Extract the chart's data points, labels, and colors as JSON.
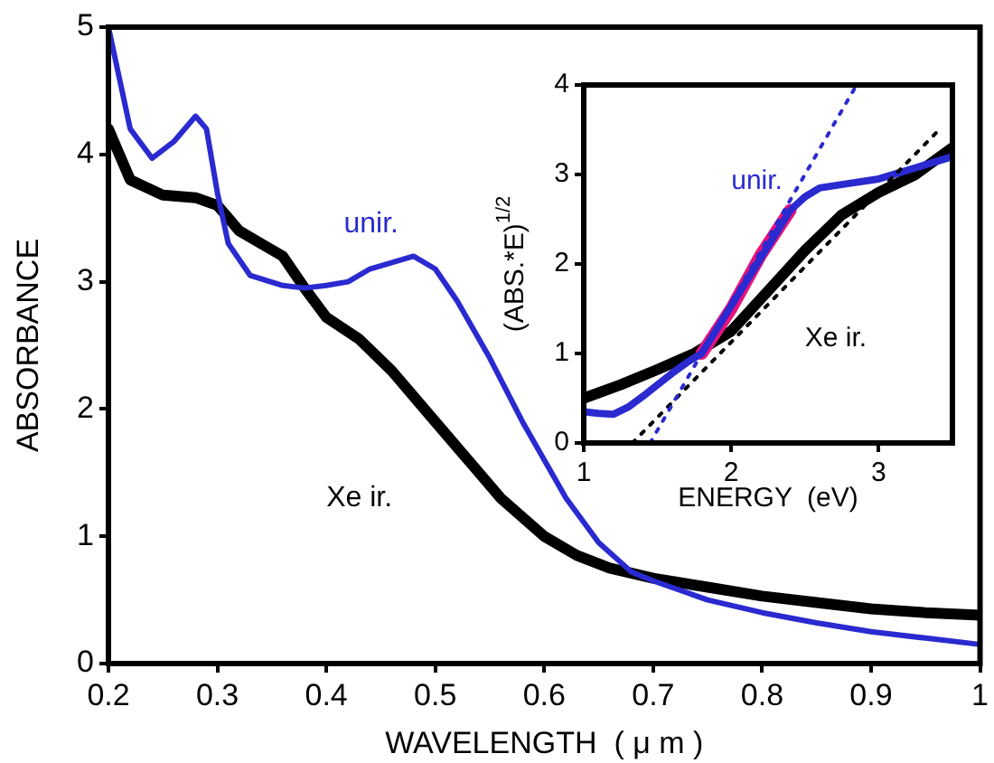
{
  "chart_data": [
    {
      "type": "line",
      "xlabel": "WAVELENGTH  ( μ m )",
      "ylabel": "ABSORBANCE",
      "xlim": [
        0.2,
        1
      ],
      "xticks": [
        0.2,
        0.3,
        0.4,
        0.5,
        0.6,
        0.7,
        0.8,
        0.9,
        1
      ],
      "ylim": [
        0,
        5
      ],
      "yticks": [
        0,
        1,
        2,
        3,
        4,
        5
      ],
      "grid": false,
      "legend": false,
      "marker": "none",
      "line_style": "solid",
      "series": [
        {
          "name": "unir.",
          "color": "#2a2ad0",
          "x": [
            0.2,
            0.21,
            0.22,
            0.24,
            0.26,
            0.28,
            0.29,
            0.3,
            0.31,
            0.33,
            0.36,
            0.38,
            0.4,
            0.42,
            0.44,
            0.48,
            0.5,
            0.52,
            0.55,
            0.58,
            0.6,
            0.62,
            0.65,
            0.68,
            0.7,
            0.75,
            0.8,
            0.85,
            0.9,
            0.95,
            1
          ],
          "values": [
            5.0,
            4.6,
            4.2,
            3.97,
            4.1,
            4.3,
            4.2,
            3.7,
            3.3,
            3.05,
            2.97,
            2.95,
            2.97,
            3.0,
            3.1,
            3.2,
            3.1,
            2.85,
            2.4,
            1.9,
            1.6,
            1.3,
            0.95,
            0.72,
            0.65,
            0.5,
            0.4,
            0.32,
            0.25,
            0.2,
            0.15
          ]
        },
        {
          "name": "Xe ir.",
          "color": "#000000",
          "x": [
            0.2,
            0.21,
            0.22,
            0.25,
            0.28,
            0.3,
            0.32,
            0.34,
            0.36,
            0.38,
            0.4,
            0.43,
            0.46,
            0.5,
            0.53,
            0.56,
            0.6,
            0.63,
            0.66,
            0.7,
            0.75,
            0.8,
            0.85,
            0.9,
            0.95,
            1
          ],
          "values": [
            4.2,
            4.0,
            3.8,
            3.68,
            3.66,
            3.6,
            3.4,
            3.3,
            3.2,
            2.95,
            2.72,
            2.55,
            2.3,
            1.9,
            1.6,
            1.3,
            1.0,
            0.85,
            0.75,
            0.67,
            0.6,
            0.53,
            0.48,
            0.43,
            0.4,
            0.38
          ]
        }
      ]
    },
    {
      "type": "line",
      "xlabel": "ENERGY  (eV)",
      "ylabel": "(ABS.*E)$^{1/2}$",
      "xlim": [
        1,
        3.5
      ],
      "xticks": [
        1,
        2,
        3
      ],
      "ylim": [
        0,
        4
      ],
      "yticks": [
        0,
        1,
        2,
        3,
        4
      ],
      "grid": false,
      "legend": false,
      "marker": "none",
      "line_style": "solid",
      "series": [
        {
          "color": "#2a2ad0",
          "line_style": "dotted",
          "x": [
            1.45,
            2.85
          ],
          "values": [
            0,
            4
          ]
        },
        {
          "color": "#000000",
          "line_style": "dotted",
          "x": [
            1.33,
            3.41
          ],
          "values": [
            0,
            3.5
          ]
        },
        {
          "name": "unir.",
          "color": "#2a2ad0",
          "x": [
            1,
            1.1,
            1.2,
            1.3,
            1.4,
            1.5,
            1.6,
            1.7,
            1.8,
            2.4,
            2.5,
            2.6,
            2.8,
            3.0,
            3.2,
            3.5
          ],
          "values": [
            0.35,
            0.33,
            0.32,
            0.4,
            0.52,
            0.65,
            0.78,
            0.9,
            1.0,
            2.6,
            2.75,
            2.85,
            2.9,
            2.95,
            3.05,
            3.2
          ]
        },
        {
          "color": "#e8127c",
          "x": [
            1.8,
            2.0,
            2.2,
            2.4
          ],
          "values": [
            1.0,
            1.5,
            2.1,
            2.6
          ]
        },
        {
          "name": "Xe ir.",
          "color": "#000000",
          "x": [
            1,
            1.25,
            1.5,
            1.75,
            2.0,
            2.25,
            2.5,
            2.75,
            3.0,
            3.25,
            3.5
          ],
          "values": [
            0.5,
            0.65,
            0.82,
            1.0,
            1.25,
            1.7,
            2.15,
            2.55,
            2.8,
            3.0,
            3.3
          ]
        }
      ]
    }
  ]
}
